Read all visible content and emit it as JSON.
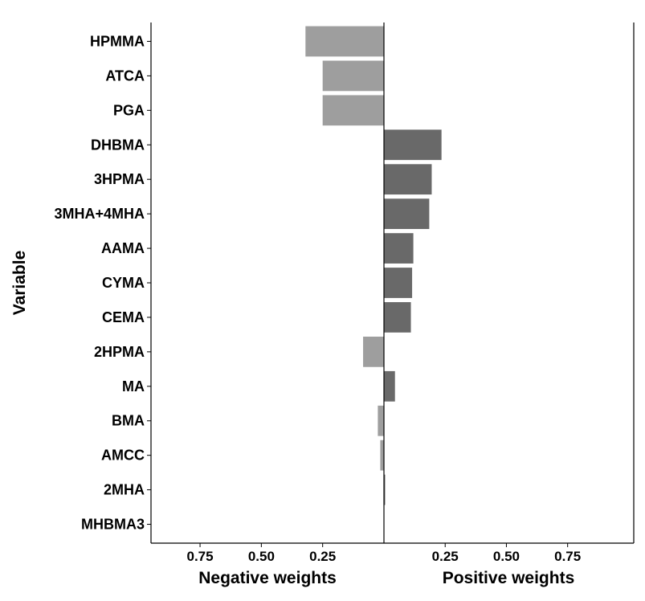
{
  "chart_data": {
    "type": "bar",
    "orientation": "horizontal",
    "categories": [
      "HPMMA",
      "ATCA",
      "PGA",
      "DHBMA",
      "3HPMA",
      "3MHA+4MHA",
      "AAMA",
      "CYMA",
      "CEMA",
      "2HPMA",
      "MA",
      "BMA",
      "AMCC",
      "2MHA",
      "MHBMA3"
    ],
    "negative_weights": [
      0.32,
      0.25,
      0.25,
      0,
      0,
      0,
      0,
      0,
      0,
      0.085,
      0,
      0.025,
      0.015,
      0,
      0
    ],
    "positive_weights": [
      0,
      0,
      0,
      0.235,
      0.195,
      0.185,
      0.12,
      0.115,
      0.11,
      0,
      0.045,
      0,
      0,
      0.004,
      0
    ],
    "negative_ticks": [
      "0.75",
      "0.50",
      "0.25"
    ],
    "positive_ticks": [
      "0.25",
      "0.50",
      "0.75"
    ],
    "xlim_negative": [
      0,
      0.95
    ],
    "xlim_positive": [
      0,
      1.02
    ],
    "ylabel": "Variable",
    "xlabel_negative": "Negative weights",
    "xlabel_positive": "Positive weights",
    "grid": false,
    "colors": {
      "negative": "#9e9e9e",
      "positive": "#696969",
      "axis": "#000000"
    }
  }
}
